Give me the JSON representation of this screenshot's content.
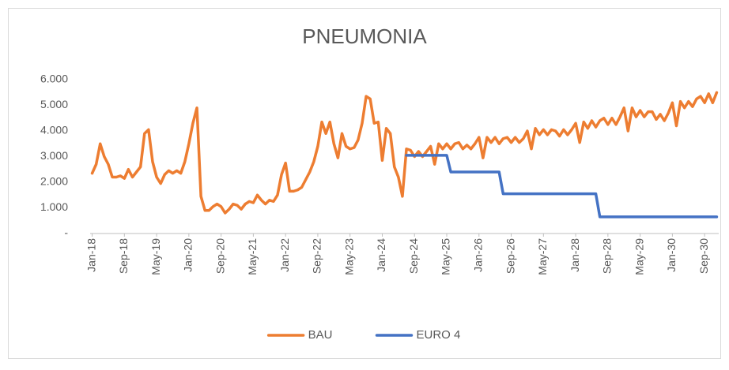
{
  "chart_data": {
    "type": "line",
    "title": "PNEUMONIA",
    "categories": [
      "Jan-18",
      null,
      null,
      null,
      null,
      null,
      null,
      null,
      "Sep-18",
      null,
      null,
      null,
      null,
      null,
      null,
      null,
      "May-19",
      null,
      null,
      null,
      null,
      null,
      null,
      null,
      "Jan-20",
      null,
      null,
      null,
      null,
      null,
      null,
      null,
      "Sep-20",
      null,
      null,
      null,
      null,
      null,
      null,
      null,
      "May-21",
      null,
      null,
      null,
      null,
      null,
      null,
      null,
      "Jan-22",
      null,
      null,
      null,
      null,
      null,
      null,
      null,
      "Sep-22",
      null,
      null,
      null,
      null,
      null,
      null,
      null,
      "May-23",
      null,
      null,
      null,
      null,
      null,
      null,
      null,
      "Jan-24",
      null,
      null,
      null,
      null,
      null,
      null,
      null,
      "Sep-24",
      null,
      null,
      null,
      null,
      null,
      null,
      null,
      "May-25",
      null,
      null,
      null,
      null,
      null,
      null,
      null,
      "Jan-26",
      null,
      null,
      null,
      null,
      null,
      null,
      null,
      "Sep-26",
      null,
      null,
      null,
      null,
      null,
      null,
      null,
      "May-27",
      null,
      null,
      null,
      null,
      null,
      null,
      null,
      "Jan-28",
      null,
      null,
      null,
      null,
      null,
      null,
      null,
      "Sep-28",
      null,
      null,
      null,
      null,
      null,
      null,
      null,
      "May-29",
      null,
      null,
      null,
      null,
      null,
      null,
      null,
      "Jan-30",
      null,
      null,
      null,
      null,
      null,
      null,
      null,
      "Sep-30",
      null,
      null,
      null
    ],
    "series": [
      {
        "name": "BAU",
        "color": "#ED7D31",
        "values": [
          2350,
          2700,
          3500,
          3000,
          2700,
          2200,
          2200,
          2250,
          2150,
          2500,
          2200,
          2400,
          2600,
          3900,
          4050,
          2800,
          2200,
          1950,
          2300,
          2450,
          2350,
          2450,
          2350,
          2800,
          3500,
          4300,
          4900,
          1450,
          900,
          900,
          1050,
          1150,
          1050,
          800,
          950,
          1150,
          1100,
          950,
          1150,
          1250,
          1200,
          1500,
          1300,
          1150,
          1300,
          1250,
          1500,
          2300,
          2750,
          1650,
          1650,
          1700,
          1800,
          2100,
          2400,
          2800,
          3400,
          4350,
          3900,
          4350,
          3500,
          2950,
          3900,
          3400,
          3300,
          3350,
          3650,
          4300,
          5350,
          5250,
          4300,
          4350,
          2850,
          4100,
          3900,
          2600,
          2200,
          1450,
          3300,
          3250,
          3000,
          3200,
          3000,
          3200,
          3400,
          2700,
          3500,
          3300,
          3500,
          3300,
          3500,
          3550,
          3300,
          3450,
          3300,
          3500,
          3750,
          2950,
          3750,
          3550,
          3750,
          3500,
          3700,
          3750,
          3550,
          3750,
          3550,
          3700,
          4000,
          3300,
          4100,
          3850,
          4050,
          3850,
          4050,
          4000,
          3800,
          4050,
          3850,
          4050,
          4300,
          3550,
          4350,
          4100,
          4400,
          4150,
          4400,
          4500,
          4250,
          4500,
          4250,
          4550,
          4900,
          4000,
          4900,
          4550,
          4800,
          4550,
          4750,
          4750,
          4450,
          4650,
          4400,
          4700,
          5100,
          4200,
          5150,
          4900,
          5150,
          4950,
          5250,
          5350,
          5100,
          5450,
          5100,
          5500
        ]
      },
      {
        "name": "EURO 4",
        "color": "#4472C4",
        "values": [
          null,
          null,
          null,
          null,
          null,
          null,
          null,
          null,
          null,
          null,
          null,
          null,
          null,
          null,
          null,
          null,
          null,
          null,
          null,
          null,
          null,
          null,
          null,
          null,
          null,
          null,
          null,
          null,
          null,
          null,
          null,
          null,
          null,
          null,
          null,
          null,
          null,
          null,
          null,
          null,
          null,
          null,
          null,
          null,
          null,
          null,
          null,
          null,
          null,
          null,
          null,
          null,
          null,
          null,
          null,
          null,
          null,
          null,
          null,
          null,
          null,
          null,
          null,
          null,
          null,
          null,
          null,
          null,
          null,
          null,
          null,
          null,
          null,
          null,
          null,
          null,
          null,
          null,
          3050,
          3050,
          3050,
          3050,
          3050,
          3050,
          3050,
          3050,
          3050,
          3050,
          3050,
          2400,
          2400,
          2400,
          2400,
          2400,
          2400,
          2400,
          2400,
          2400,
          2400,
          2400,
          2400,
          2400,
          1550,
          1550,
          1550,
          1550,
          1550,
          1550,
          1550,
          1550,
          1550,
          1550,
          1550,
          1550,
          1550,
          1550,
          1550,
          1550,
          1550,
          1550,
          1550,
          1550,
          1550,
          1550,
          1550,
          1550,
          650,
          650,
          650,
          650,
          650,
          650,
          650,
          650,
          650,
          650,
          650,
          650,
          650,
          650,
          650,
          650,
          650,
          650,
          650,
          650,
          650,
          650,
          650,
          650,
          650,
          650,
          650,
          650,
          650,
          650
        ]
      }
    ],
    "ylim": [
      0,
      6000
    ],
    "yticks": [
      {
        "value": 0,
        "label": "-"
      },
      {
        "value": 1000,
        "label": "1.000"
      },
      {
        "value": 2000,
        "label": "2.000"
      },
      {
        "value": 3000,
        "label": "3.000"
      },
      {
        "value": 4000,
        "label": "4.000"
      },
      {
        "value": 5000,
        "label": "5.000"
      },
      {
        "value": 6000,
        "label": "6.000"
      }
    ],
    "grid": false,
    "legend": "bottom"
  }
}
